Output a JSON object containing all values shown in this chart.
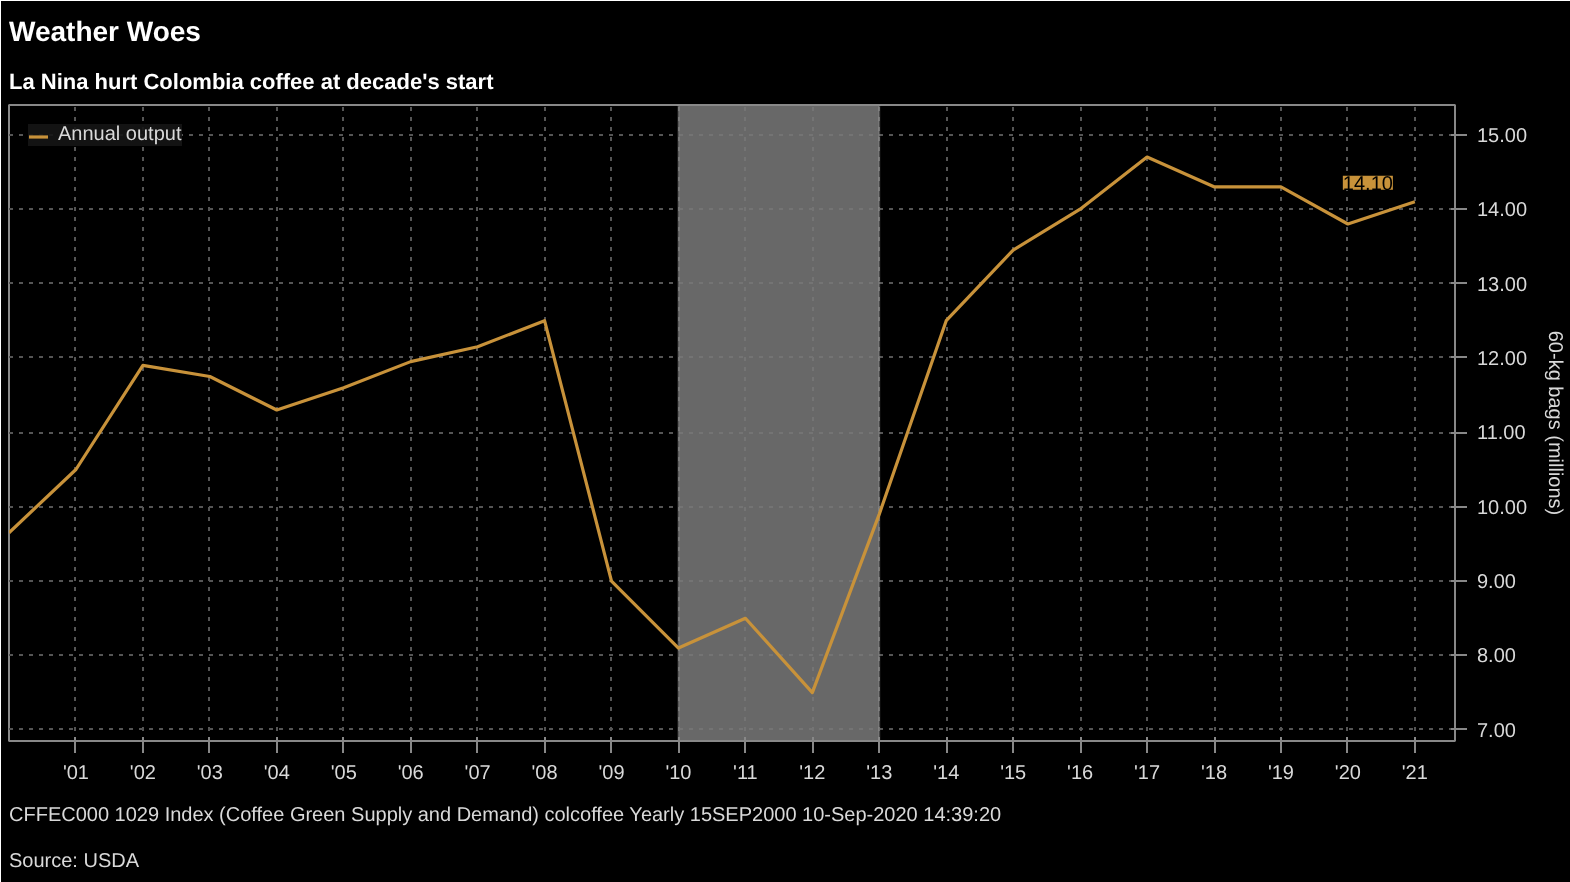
{
  "chart_data": {
    "type": "line",
    "title": "Weather Woes",
    "subtitle": "La Nina hurt Colombia coffee at decade's start",
    "ylabel": "60-kg bags (millions)",
    "x": [
      2000,
      2001,
      2002,
      2003,
      2004,
      2005,
      2006,
      2007,
      2008,
      2009,
      2010,
      2011,
      2012,
      2013,
      2014,
      2015,
      2016,
      2017,
      2018,
      2019,
      2020,
      2021
    ],
    "series": [
      {
        "name": "Annual output",
        "color": "#c8923a",
        "values": [
          9.65,
          10.5,
          11.9,
          11.75,
          11.3,
          11.6,
          11.95,
          12.15,
          12.5,
          9.0,
          8.1,
          8.5,
          7.5,
          9.9,
          12.5,
          13.45,
          14.0,
          14.7,
          14.3,
          14.3,
          13.8,
          14.1
        ],
        "value_labels": [
          null,
          null,
          null,
          null,
          null,
          null,
          null,
          null,
          null,
          null,
          null,
          null,
          null,
          null,
          null,
          null,
          null,
          null,
          null,
          null,
          null,
          "14.10"
        ]
      }
    ],
    "xlim": [
      2000,
      2021.6
    ],
    "ylim": [
      6.85,
      15.4
    ],
    "xticks": [
      {
        "value": 2001,
        "label": "'01"
      },
      {
        "value": 2002,
        "label": "'02"
      },
      {
        "value": 2003,
        "label": "'03"
      },
      {
        "value": 2004,
        "label": "'04"
      },
      {
        "value": 2005,
        "label": "'05"
      },
      {
        "value": 2006,
        "label": "'06"
      },
      {
        "value": 2007,
        "label": "'07"
      },
      {
        "value": 2008,
        "label": "'08"
      },
      {
        "value": 2009,
        "label": "'09"
      },
      {
        "value": 2010,
        "label": "'10"
      },
      {
        "value": 2011,
        "label": "'11"
      },
      {
        "value": 2012,
        "label": "'12"
      },
      {
        "value": 2013,
        "label": "'13"
      },
      {
        "value": 2014,
        "label": "'14"
      },
      {
        "value": 2015,
        "label": "'15"
      },
      {
        "value": 2016,
        "label": "'16"
      },
      {
        "value": 2017,
        "label": "'17"
      },
      {
        "value": 2018,
        "label": "'18"
      },
      {
        "value": 2019,
        "label": "'19"
      },
      {
        "value": 2020,
        "label": "'20"
      },
      {
        "value": 2021,
        "label": "'21"
      }
    ],
    "yticks": [
      {
        "value": 7,
        "label": "7.00"
      },
      {
        "value": 8,
        "label": "8.00"
      },
      {
        "value": 9,
        "label": "9.00"
      },
      {
        "value": 10,
        "label": "10.00"
      },
      {
        "value": 11,
        "label": "11.00"
      },
      {
        "value": 12,
        "label": "12.00"
      },
      {
        "value": 13,
        "label": "13.00"
      },
      {
        "value": 14,
        "label": "14.00"
      },
      {
        "value": 15,
        "label": "15.00"
      }
    ],
    "bands": [
      {
        "axis": "x",
        "from": 2010,
        "to": 2013,
        "color": "#7a7a7a"
      }
    ],
    "annotations": [
      "Source: USDA",
      "CFFEC000 1029 Index (Coffee Green Supply and Demand) colcoffee  Yearly 15SEP2000     10-Sep-2020 14:39:20"
    ],
    "grid": true,
    "legend": "top left",
    "line_style": "solid",
    "marker": "none"
  }
}
